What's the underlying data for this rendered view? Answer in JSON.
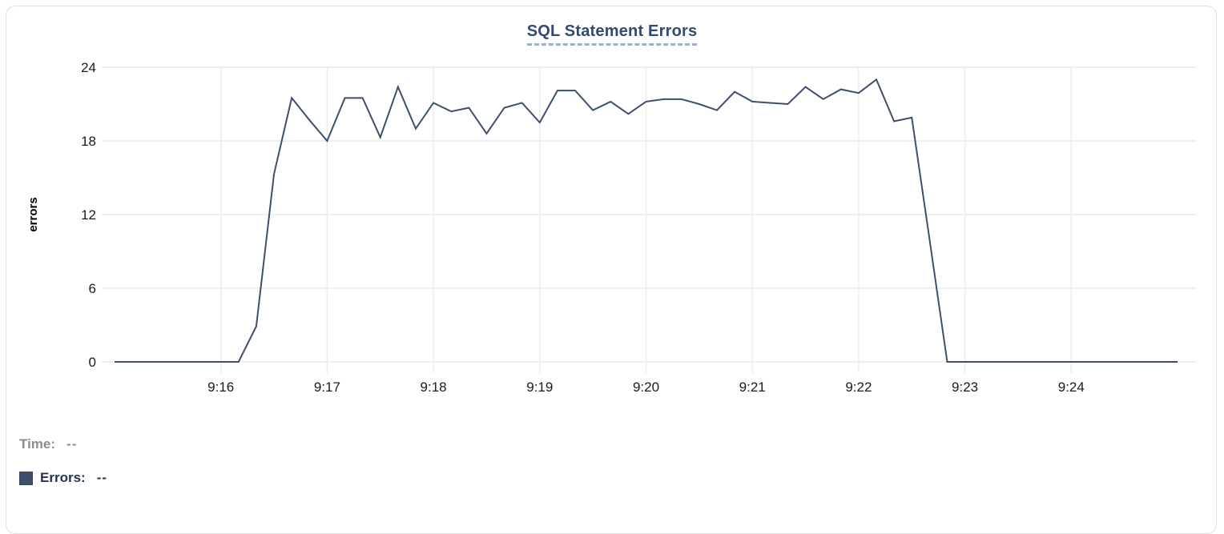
{
  "card": {
    "title": "SQL Statement Errors"
  },
  "tooltip": {
    "time_label": "Time:",
    "time_value": "--",
    "errors_label": "Errors:",
    "errors_value": "--",
    "swatch_color": "#3e4f6c"
  },
  "colors": {
    "line": "#3e4f6e",
    "grid_horizontal": "#e9e9e9",
    "grid_vertical": "#ededed",
    "axis_text": "#1b1b1b",
    "title_text": "#33496d",
    "title_underline": "#9fafca",
    "time_text": "#8d8d8d",
    "errors_text": "#22305a",
    "card_border": "#dcdfe3"
  },
  "chart_data": {
    "type": "line",
    "title": "SQL Statement Errors",
    "xlabel": "",
    "ylabel": "errors",
    "legend_entries": [
      "Errors"
    ],
    "grid": true,
    "x_start": "9:15:00",
    "x_end": "9:25:00",
    "sample_interval_seconds": 10,
    "x_tick_labels": [
      "9:16",
      "9:17",
      "9:18",
      "9:19",
      "9:20",
      "9:21",
      "9:22",
      "9:23",
      "9:24"
    ],
    "y_ticks": [
      0,
      6,
      12,
      18,
      24
    ],
    "ylim": [
      0,
      24
    ],
    "series": [
      {
        "name": "Errors",
        "color": "#3e4f6e",
        "values": [
          0,
          0,
          0,
          0,
          0,
          0,
          0,
          0,
          2.9,
          15.3,
          21.5,
          19.7,
          18,
          21.5,
          21.5,
          18.3,
          22.4,
          19,
          21.1,
          20.4,
          20.7,
          18.6,
          20.7,
          21.1,
          19.5,
          22.1,
          22.1,
          20.5,
          21.2,
          20.2,
          21.2,
          21.4,
          21.4,
          21,
          20.5,
          22,
          21.2,
          21.1,
          21,
          22.4,
          21.4,
          22.2,
          21.9,
          23,
          19.6,
          19.9,
          10,
          0,
          0,
          0,
          0,
          0,
          0,
          0,
          0,
          0,
          0,
          0,
          0,
          0,
          0
        ]
      }
    ]
  }
}
